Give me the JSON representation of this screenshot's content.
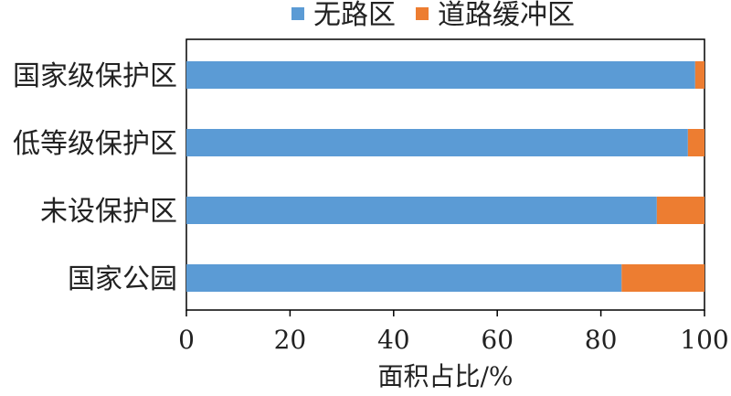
{
  "chart_data": {
    "type": "bar",
    "orientation": "horizontal",
    "stacked": true,
    "categories": [
      "国家级保护区",
      "低等级保护区",
      "未设保护区",
      "国家公园"
    ],
    "series": [
      {
        "name": "无路区",
        "color": "#5b9bd5",
        "values": [
          98.2,
          96.8,
          90.8,
          84.0
        ]
      },
      {
        "name": "道路缓冲区",
        "color": "#ed7d31",
        "values": [
          1.8,
          3.2,
          9.2,
          16.0
        ]
      }
    ],
    "xlabel": "面积占比/%",
    "xlim": [
      0,
      100
    ],
    "xticks": [
      "0",
      "20",
      "40",
      "60",
      "80",
      "100"
    ],
    "legend_position": "top",
    "grid": false
  }
}
